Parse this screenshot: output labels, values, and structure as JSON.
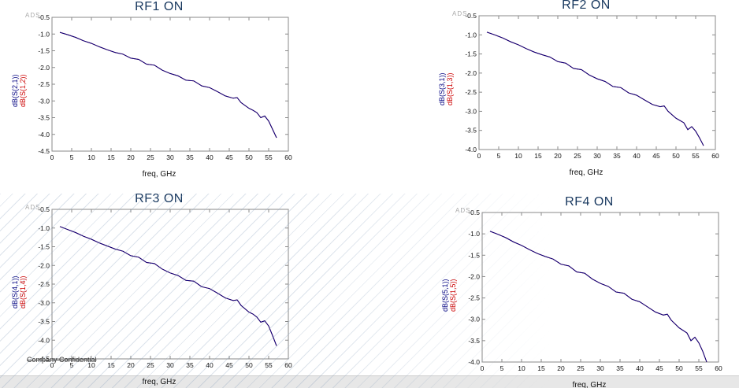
{
  "page": {
    "ads_label": "ADS",
    "confidential_label": "Company Confidential"
  },
  "colors": {
    "frame": "#8a8a8a",
    "title": "#17375e",
    "primary": "#000080",
    "secondary": "#cc0000",
    "tick_text": "#111111",
    "bottom_bar": "#e7e7e7"
  },
  "chart_data": [
    {
      "type": "line",
      "title": "RF1 ON",
      "xlabel": "freq, GHz",
      "xlim": [
        0,
        60
      ],
      "ylim": [
        -4.5,
        -0.5
      ],
      "xticks": [
        0,
        5,
        10,
        15,
        20,
        25,
        30,
        35,
        40,
        45,
        50,
        55,
        60
      ],
      "yticks": [
        -0.5,
        -1.0,
        -1.5,
        -2.0,
        -2.5,
        -3.0,
        -3.5,
        -4.0,
        -4.5
      ],
      "x": [
        2,
        4,
        6,
        8,
        10,
        12,
        14,
        16,
        18,
        20,
        22,
        24,
        26,
        28,
        30,
        32,
        34,
        36,
        38,
        40,
        42,
        44,
        46,
        47,
        48,
        50,
        51,
        52,
        53,
        54,
        55,
        56,
        57
      ],
      "series": [
        {
          "name": "dB(S(2,1))",
          "color": "#000080",
          "values": [
            -0.95,
            -1.02,
            -1.1,
            -1.2,
            -1.28,
            -1.38,
            -1.47,
            -1.55,
            -1.6,
            -1.72,
            -1.76,
            -1.9,
            -1.93,
            -2.08,
            -2.18,
            -2.25,
            -2.38,
            -2.4,
            -2.55,
            -2.6,
            -2.72,
            -2.85,
            -2.92,
            -2.9,
            -3.05,
            -3.22,
            -3.28,
            -3.35,
            -3.5,
            -3.45,
            -3.6,
            -3.85,
            -4.1
          ]
        },
        {
          "name": "dB(S(1,2))",
          "color": "#cc0000",
          "values": [
            -0.95,
            -1.02,
            -1.1,
            -1.2,
            -1.28,
            -1.38,
            -1.47,
            -1.55,
            -1.6,
            -1.72,
            -1.76,
            -1.9,
            -1.93,
            -2.08,
            -2.18,
            -2.25,
            -2.38,
            -2.4,
            -2.55,
            -2.6,
            -2.72,
            -2.85,
            -2.92,
            -2.9,
            -3.05,
            -3.22,
            -3.28,
            -3.35,
            -3.5,
            -3.45,
            -3.6,
            -3.85,
            -4.1
          ]
        }
      ]
    },
    {
      "type": "line",
      "title": "RF2 ON",
      "xlabel": "freq, GHz",
      "xlim": [
        0,
        60
      ],
      "ylim": [
        -4.0,
        -0.5
      ],
      "xticks": [
        0,
        5,
        10,
        15,
        20,
        25,
        30,
        35,
        40,
        45,
        50,
        55,
        60
      ],
      "yticks": [
        -0.5,
        -1.0,
        -1.5,
        -2.0,
        -2.5,
        -3.0,
        -3.5,
        -4.0
      ],
      "x": [
        2,
        4,
        6,
        8,
        10,
        12,
        14,
        16,
        18,
        20,
        22,
        24,
        26,
        28,
        30,
        32,
        34,
        36,
        38,
        40,
        42,
        44,
        46,
        47,
        48,
        50,
        51,
        52,
        53,
        54,
        55,
        56,
        57
      ],
      "series": [
        {
          "name": "dB(S(3,1))",
          "color": "#000080",
          "values": [
            -0.93,
            -1.0,
            -1.08,
            -1.18,
            -1.26,
            -1.36,
            -1.45,
            -1.52,
            -1.58,
            -1.7,
            -1.74,
            -1.88,
            -1.91,
            -2.05,
            -2.15,
            -2.22,
            -2.35,
            -2.38,
            -2.52,
            -2.58,
            -2.7,
            -2.82,
            -2.88,
            -2.86,
            -3.0,
            -3.18,
            -3.24,
            -3.3,
            -3.48,
            -3.4,
            -3.52,
            -3.7,
            -3.9
          ]
        },
        {
          "name": "dB(S(1,3))",
          "color": "#cc0000",
          "values": [
            -0.93,
            -1.0,
            -1.08,
            -1.18,
            -1.26,
            -1.36,
            -1.45,
            -1.52,
            -1.58,
            -1.7,
            -1.74,
            -1.88,
            -1.91,
            -2.05,
            -2.15,
            -2.22,
            -2.35,
            -2.38,
            -2.52,
            -2.58,
            -2.7,
            -2.82,
            -2.88,
            -2.86,
            -3.0,
            -3.18,
            -3.24,
            -3.3,
            -3.48,
            -3.4,
            -3.52,
            -3.7,
            -3.9
          ]
        }
      ]
    },
    {
      "type": "line",
      "title": "RF3 ON",
      "xlabel": "freq, GHz",
      "xlim": [
        0,
        60
      ],
      "ylim": [
        -4.5,
        -0.5
      ],
      "xticks": [
        0,
        5,
        10,
        15,
        20,
        25,
        30,
        35,
        40,
        45,
        50,
        55,
        60
      ],
      "yticks": [
        -0.5,
        -1.0,
        -1.5,
        -2.0,
        -2.5,
        -3.0,
        -3.5,
        -4.0,
        -4.5
      ],
      "x": [
        2,
        4,
        6,
        8,
        10,
        12,
        14,
        16,
        18,
        20,
        22,
        24,
        26,
        28,
        30,
        32,
        34,
        36,
        38,
        40,
        42,
        44,
        46,
        47,
        48,
        50,
        51,
        52,
        53,
        54,
        55,
        56,
        57
      ],
      "series": [
        {
          "name": "dB(S(4,1))",
          "color": "#000080",
          "values": [
            -0.96,
            -1.04,
            -1.12,
            -1.22,
            -1.3,
            -1.4,
            -1.48,
            -1.56,
            -1.62,
            -1.74,
            -1.78,
            -1.92,
            -1.95,
            -2.1,
            -2.2,
            -2.27,
            -2.4,
            -2.42,
            -2.57,
            -2.62,
            -2.74,
            -2.87,
            -2.94,
            -2.92,
            -3.07,
            -3.25,
            -3.3,
            -3.38,
            -3.52,
            -3.48,
            -3.62,
            -3.88,
            -4.15
          ]
        },
        {
          "name": "dB(S(1,4))",
          "color": "#cc0000",
          "values": [
            -0.96,
            -1.04,
            -1.12,
            -1.22,
            -1.3,
            -1.4,
            -1.48,
            -1.56,
            -1.62,
            -1.74,
            -1.78,
            -1.92,
            -1.95,
            -2.1,
            -2.2,
            -2.27,
            -2.4,
            -2.42,
            -2.57,
            -2.62,
            -2.74,
            -2.87,
            -2.94,
            -2.92,
            -3.07,
            -3.25,
            -3.3,
            -3.38,
            -3.52,
            -3.48,
            -3.62,
            -3.88,
            -4.15
          ]
        }
      ]
    },
    {
      "type": "line",
      "title": "RF4 ON",
      "xlabel": "freq, GHz",
      "xlim": [
        0,
        60
      ],
      "ylim": [
        -4.0,
        -0.5
      ],
      "xticks": [
        0,
        5,
        10,
        15,
        20,
        25,
        30,
        35,
        40,
        45,
        50,
        55,
        60
      ],
      "yticks": [
        -0.5,
        -1.0,
        -1.5,
        -2.0,
        -2.5,
        -3.0,
        -3.5,
        -4.0
      ],
      "x": [
        2,
        4,
        6,
        8,
        10,
        12,
        14,
        16,
        18,
        20,
        22,
        24,
        26,
        28,
        30,
        32,
        34,
        36,
        38,
        40,
        42,
        44,
        46,
        47,
        48,
        50,
        51,
        52,
        53,
        54,
        55,
        56,
        57
      ],
      "series": [
        {
          "name": "dB(S(5,1))",
          "color": "#000080",
          "values": [
            -0.94,
            -1.01,
            -1.09,
            -1.19,
            -1.27,
            -1.37,
            -1.46,
            -1.53,
            -1.59,
            -1.71,
            -1.75,
            -1.89,
            -1.92,
            -2.06,
            -2.16,
            -2.23,
            -2.36,
            -2.39,
            -2.53,
            -2.59,
            -2.71,
            -2.83,
            -2.9,
            -2.88,
            -3.02,
            -3.2,
            -3.26,
            -3.32,
            -3.5,
            -3.42,
            -3.55,
            -3.75,
            -4.0
          ]
        },
        {
          "name": "dB(S(1,5))",
          "color": "#cc0000",
          "values": [
            -0.94,
            -1.01,
            -1.09,
            -1.19,
            -1.27,
            -1.37,
            -1.46,
            -1.53,
            -1.59,
            -1.71,
            -1.75,
            -1.89,
            -1.92,
            -2.06,
            -2.16,
            -2.23,
            -2.36,
            -2.39,
            -2.53,
            -2.59,
            -2.71,
            -2.83,
            -2.9,
            -2.88,
            -3.02,
            -3.2,
            -3.26,
            -3.32,
            -3.5,
            -3.42,
            -3.55,
            -3.75,
            -4.0
          ]
        }
      ]
    }
  ]
}
